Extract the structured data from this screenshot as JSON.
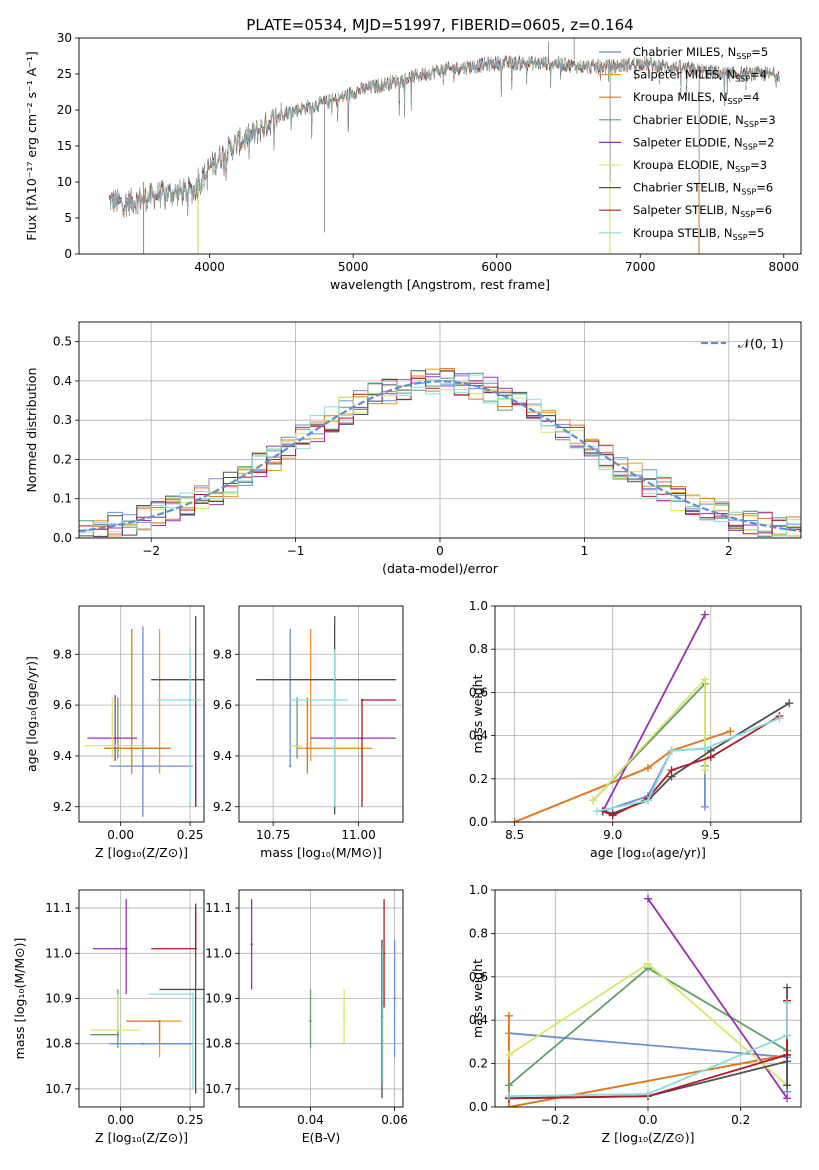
{
  "figure_title": "PLATE=0534, MJD=51997, FIBERID=0605, z=0.164",
  "colors": {
    "Chabrier MILES": "#6a8fd8",
    "Salpeter MILES": "#f0962a",
    "Kroupa MILES": "#e0781e",
    "Chabrier ELODIE": "#5fa06a",
    "Salpeter ELODIE": "#9b30b8",
    "Kroupa ELODIE": "#d4e86a",
    "Chabrier STELIB": "#505050",
    "Salpeter STELIB": "#b01a2a",
    "Kroupa STELIB": "#88dde0",
    "data": "#808080",
    "normal": "#5b8fd6"
  },
  "chart_data": [
    {
      "id": "spectrum",
      "type": "line",
      "xlabel": "wavelength [Angstrom, rest frame]",
      "ylabel": "Flux [fλ10⁻¹⁷ erg cm⁻² s⁻¹ A⁻¹]",
      "xlim": [
        3090,
        8120
      ],
      "ylim": [
        0,
        30
      ],
      "xticks": [
        "4000",
        "5000",
        "6000",
        "7000",
        "8000"
      ],
      "yticks": [
        "0",
        "5",
        "10",
        "15",
        "20",
        "25",
        "30"
      ],
      "legend_position": "right",
      "legend": [
        {
          "label": "Chabrier MILES, N",
          "sub": "SSP",
          "tail": "=5"
        },
        {
          "label": "Salpeter MILES, N",
          "sub": "SSP",
          "tail": "=4"
        },
        {
          "label": "Kroupa MILES, N",
          "sub": "SSP",
          "tail": "=4"
        },
        {
          "label": "Chabrier ELODIE, N",
          "sub": "SSP",
          "tail": "=3"
        },
        {
          "label": "Salpeter ELODIE, N",
          "sub": "SSP",
          "tail": "=2"
        },
        {
          "label": "Kroupa ELODIE, N",
          "sub": "SSP",
          "tail": "=3"
        },
        {
          "label": "Chabrier STELIB, N",
          "sub": "SSP",
          "tail": "=6"
        },
        {
          "label": "Salpeter STELIB, N",
          "sub": "SSP",
          "tail": "=6"
        },
        {
          "label": "Kroupa STELIB, N",
          "sub": "SSP",
          "tail": "=5"
        }
      ],
      "continuum": [
        [
          3300,
          7.5
        ],
        [
          3400,
          7
        ],
        [
          3500,
          7.5
        ],
        [
          3600,
          8
        ],
        [
          3700,
          8.5
        ],
        [
          3800,
          8.5
        ],
        [
          3900,
          9
        ],
        [
          4000,
          12
        ],
        [
          4100,
          14
        ],
        [
          4200,
          15.5
        ],
        [
          4300,
          16.5
        ],
        [
          4400,
          18
        ],
        [
          4500,
          19.5
        ],
        [
          4600,
          20
        ],
        [
          4700,
          20.5
        ],
        [
          4800,
          21
        ],
        [
          4900,
          21.5
        ],
        [
          5000,
          22.5
        ],
        [
          5200,
          23.5
        ],
        [
          5400,
          24.5
        ],
        [
          5600,
          25.5
        ],
        [
          5800,
          26
        ],
        [
          6000,
          26.5
        ],
        [
          6200,
          26.5
        ],
        [
          6400,
          26.5
        ],
        [
          6600,
          26
        ],
        [
          6800,
          26
        ],
        [
          7000,
          26.5
        ],
        [
          7200,
          26
        ],
        [
          7400,
          25.5
        ],
        [
          7600,
          25
        ],
        [
          7800,
          25
        ],
        [
          7970,
          25
        ]
      ]
    },
    {
      "id": "residuals",
      "type": "step",
      "xlabel": "(data-model)/error",
      "ylabel": "Normed distribution",
      "xlim": [
        -2.5,
        2.5
      ],
      "ylim": [
        0,
        0.55
      ],
      "xticks": [
        "−2",
        "−1",
        "0",
        "1",
        "2"
      ],
      "yticks": [
        "0.0",
        "0.1",
        "0.2",
        "0.3",
        "0.4",
        "0.5"
      ],
      "legend": "𝒩(0, 1)",
      "legend_position": "top-right",
      "normal": {
        "mean": 0,
        "std": 1
      }
    },
    {
      "id": "age_vs_Z",
      "type": "errorbar",
      "xlabel": "Z [log₁₀(Z/Z⊙)]",
      "ylabel": "age  [log₁₀(age/yr)]",
      "xlim": [
        -0.15,
        0.3
      ],
      "ylim": [
        9.14,
        9.99
      ],
      "xticks": [
        "0.00",
        "0.25"
      ],
      "yticks": [
        "9.2",
        "9.4",
        "9.6",
        "9.8"
      ],
      "points": [
        {
          "series": "Chabrier MILES",
          "x": 0.08,
          "xerr": [
            0.12,
            0.18
          ],
          "y": 9.36,
          "yerr": [
            0.2,
            0.55
          ]
        },
        {
          "series": "Salpeter MILES",
          "x": 0.14,
          "xerr": [
            0.05,
            0.0
          ],
          "y": 9.43,
          "yerr": [
            0.1,
            0.47
          ]
        },
        {
          "series": "Kroupa MILES",
          "x": 0.04,
          "xerr": [
            0.1,
            0.14
          ],
          "y": 9.43,
          "yerr": [
            0.1,
            0.47
          ]
        },
        {
          "series": "Chabrier ELODIE",
          "x": -0.01,
          "xerr": [
            0.0,
            0.0
          ],
          "y": 9.44,
          "yerr": [
            0.05,
            0.19
          ]
        },
        {
          "series": "Salpeter ELODIE",
          "x": -0.02,
          "xerr": [
            0.1,
            0.08
          ],
          "y": 9.47,
          "yerr": [
            0.09,
            0.17
          ]
        },
        {
          "series": "Kroupa ELODIE",
          "x": -0.03,
          "xerr": [
            0.1,
            0.12
          ],
          "y": 9.44,
          "yerr": [
            0.05,
            0.19
          ]
        },
        {
          "series": "Chabrier STELIB",
          "x": 0.27,
          "xerr": [
            0.16,
            0.04
          ],
          "y": 9.7,
          "yerr": [
            0.5,
            0.25
          ]
        },
        {
          "series": "Salpeter STELIB",
          "x": 0.27,
          "xerr": [
            0.0,
            0.0
          ],
          "y": 9.62,
          "yerr": [
            0.42,
            0.0
          ]
        },
        {
          "series": "Kroupa STELIB",
          "x": 0.25,
          "xerr": [
            0.12,
            0.04
          ],
          "y": 9.62,
          "yerr": [
            0.42,
            0.2
          ]
        }
      ]
    },
    {
      "id": "age_vs_mass",
      "type": "errorbar",
      "xlabel": "mass [log₁₀(M/M⊙)]",
      "ylabel": "",
      "xlim": [
        10.65,
        11.13
      ],
      "ylim": [
        9.14,
        9.99
      ],
      "xticks": [
        "10.75",
        "11.00"
      ],
      "yticks": [
        "9.2",
        "9.4",
        "9.6",
        "9.8"
      ],
      "points": [
        {
          "series": "Chabrier MILES",
          "x": 10.8,
          "xerr": [
            0.0,
            0.0
          ],
          "y": 9.36,
          "yerr": [
            0.0,
            0.54
          ]
        },
        {
          "series": "Salpeter MILES",
          "x": 10.86,
          "xerr": [
            0.04,
            0.18
          ],
          "y": 9.43,
          "yerr": [
            0.05,
            0.47
          ]
        },
        {
          "series": "Kroupa MILES",
          "x": 10.85,
          "xerr": [
            0.0,
            0.0
          ],
          "y": 9.43,
          "yerr": [
            0.1,
            0.2
          ]
        },
        {
          "series": "Chabrier ELODIE",
          "x": 10.82,
          "xerr": [
            0.0,
            0.0
          ],
          "y": 9.44,
          "yerr": [
            0.05,
            0.19
          ]
        },
        {
          "series": "Salpeter ELODIE",
          "x": 11.01,
          "xerr": [
            0.15,
            0.1
          ],
          "y": 9.47,
          "yerr": [
            0.0,
            0.0
          ]
        },
        {
          "series": "Kroupa ELODIE",
          "x": 10.83,
          "xerr": [
            0.03,
            0.0
          ],
          "y": 9.44,
          "yerr": [
            0.0,
            0.0
          ]
        },
        {
          "series": "Chabrier STELIB",
          "x": 10.93,
          "xerr": [
            0.23,
            0.18
          ],
          "y": 9.7,
          "yerr": [
            0.53,
            0.25
          ]
        },
        {
          "series": "Salpeter STELIB",
          "x": 11.01,
          "xerr": [
            0.0,
            0.1
          ],
          "y": 9.62,
          "yerr": [
            0.42,
            0.0
          ]
        },
        {
          "series": "Kroupa STELIB",
          "x": 10.93,
          "xerr": [
            0.13,
            0.04
          ],
          "y": 9.62,
          "yerr": [
            0.42,
            0.2
          ]
        }
      ]
    },
    {
      "id": "weight_vs_age",
      "type": "line",
      "xlabel": "age  [log₁₀(age/yr)]",
      "ylabel": "mass weight",
      "xlim": [
        8.4,
        9.96
      ],
      "ylim": [
        0,
        1
      ],
      "xticks": [
        "8.5",
        "9.0",
        "9.5"
      ],
      "yticks": [
        "0.0",
        "0.2",
        "0.4",
        "0.6",
        "0.8",
        "1.0"
      ],
      "series": [
        {
          "name": "Chabrier MILES",
          "x": [
            8.95,
            9.18,
            9.3,
            9.47,
            9.47
          ],
          "y": [
            0.05,
            0.12,
            0.33,
            0.34,
            0.07
          ]
        },
        {
          "name": "Salpeter MILES",
          "x": [
            8.5,
            9.18,
            9.3,
            9.6
          ],
          "y": [
            0.0,
            0.25,
            0.33,
            0.42
          ]
        },
        {
          "name": "Kroupa MILES",
          "x": [
            8.5,
            9.18,
            9.3,
            9.6
          ],
          "y": [
            0.0,
            0.25,
            0.33,
            0.42
          ]
        },
        {
          "name": "Chabrier ELODIE",
          "x": [
            8.9,
            9.47,
            9.47
          ],
          "y": [
            0.1,
            0.64,
            0.26
          ]
        },
        {
          "name": "Salpeter ELODIE",
          "x": [
            8.95,
            9.47
          ],
          "y": [
            0.05,
            0.96
          ]
        },
        {
          "name": "Kroupa ELODIE",
          "x": [
            8.9,
            9.47,
            9.47
          ],
          "y": [
            0.1,
            0.66,
            0.24
          ]
        },
        {
          "name": "Chabrier STELIB",
          "x": [
            8.95,
            9.0,
            9.18,
            9.3,
            9.5,
            9.9
          ],
          "y": [
            0.05,
            0.04,
            0.1,
            0.21,
            0.33,
            0.55
          ]
        },
        {
          "name": "Salpeter STELIB",
          "x": [
            8.95,
            9.0,
            9.18,
            9.3,
            9.5,
            9.85
          ],
          "y": [
            0.05,
            0.03,
            0.11,
            0.24,
            0.3,
            0.49
          ]
        },
        {
          "name": "Kroupa STELIB",
          "x": [
            8.92,
            9.18,
            9.3,
            9.47,
            9.85
          ],
          "y": [
            0.05,
            0.1,
            0.33,
            0.34,
            0.48
          ]
        }
      ]
    },
    {
      "id": "mass_vs_Z",
      "type": "errorbar",
      "xlabel": "Z [log₁₀(Z/Z⊙)]",
      "ylabel": "mass [log₁₀(M/M⊙)]",
      "xlim": [
        -0.15,
        0.3
      ],
      "ylim": [
        10.66,
        11.14
      ],
      "xticks": [
        "0.00",
        "0.25"
      ],
      "yticks": [
        "10.7",
        "10.8",
        "10.9",
        "11.0",
        "11.1"
      ],
      "points": [
        {
          "series": "Chabrier MILES",
          "x": 0.08,
          "xerr": [
            0.12,
            0.18
          ],
          "y": 10.8,
          "yerr": [
            0.0,
            0.0
          ]
        },
        {
          "series": "Salpeter MILES",
          "x": 0.14,
          "xerr": [
            0.12,
            0.08
          ],
          "y": 10.85,
          "yerr": [
            0.08,
            0.0
          ]
        },
        {
          "series": "Kroupa MILES",
          "x": 0.14,
          "xerr": [
            0.12,
            0.0
          ],
          "y": 10.85,
          "yerr": [
            0.05,
            0.0
          ]
        },
        {
          "series": "Chabrier ELODIE",
          "x": -0.01,
          "xerr": [
            0.1,
            0.0
          ],
          "y": 10.82,
          "yerr": [
            0.03,
            0.1
          ]
        },
        {
          "series": "Salpeter ELODIE",
          "x": 0.02,
          "xerr": [
            0.12,
            0.0
          ],
          "y": 11.01,
          "yerr": [
            0.1,
            0.11
          ]
        },
        {
          "series": "Kroupa ELODIE",
          "x": -0.01,
          "xerr": [
            0.1,
            0.08
          ],
          "y": 10.83,
          "yerr": [
            0.0,
            0.08
          ]
        },
        {
          "series": "Chabrier STELIB",
          "x": 0.27,
          "xerr": [
            0.13,
            0.03
          ],
          "y": 10.92,
          "yerr": [
            0.23,
            0.18
          ]
        },
        {
          "series": "Salpeter STELIB",
          "x": 0.27,
          "xerr": [
            0.16,
            0.0
          ],
          "y": 11.01,
          "yerr": [
            0.0,
            0.1
          ]
        },
        {
          "series": "Kroupa STELIB",
          "x": 0.26,
          "xerr": [
            0.16,
            0.0
          ],
          "y": 10.91,
          "yerr": [
            0.21,
            0.0
          ]
        }
      ]
    },
    {
      "id": "mass_vs_ebv",
      "type": "errorbar",
      "xlabel": "E(B-V)",
      "ylabel": "",
      "xlim": [
        0.023,
        0.062
      ],
      "ylim": [
        10.66,
        11.14
      ],
      "xticks": [
        "0.04",
        "0.06"
      ],
      "yticks": [
        "10.7",
        "10.8",
        "10.9",
        "11.0",
        "11.1"
      ],
      "points": [
        {
          "series": "Chabrier MILES",
          "x": 0.06,
          "xerr": [
            0,
            0
          ],
          "y": 10.9,
          "yerr": [
            0.13,
            0.13
          ]
        },
        {
          "series": "Salpeter ELODIE",
          "x": 0.026,
          "xerr": [
            0,
            0
          ],
          "y": 11.02,
          "yerr": [
            0.1,
            0.1
          ]
        },
        {
          "series": "Chabrier ELODIE",
          "x": 0.04,
          "xerr": [
            0,
            0
          ],
          "y": 10.85,
          "yerr": [
            0.06,
            0.07
          ]
        },
        {
          "series": "Kroupa ELODIE",
          "x": 0.048,
          "xerr": [
            0,
            0
          ],
          "y": 10.86,
          "yerr": [
            0.06,
            0.06
          ]
        },
        {
          "series": "Chabrier STELIB",
          "x": 0.057,
          "xerr": [
            0,
            0
          ],
          "y": 10.86,
          "yerr": [
            0.18,
            0.17
          ]
        },
        {
          "series": "Salpeter STELIB",
          "x": 0.0575,
          "xerr": [
            0,
            0
          ],
          "y": 11.0,
          "yerr": [
            0.12,
            0.12
          ]
        },
        {
          "series": "Kroupa STELIB",
          "x": 0.0572,
          "xerr": [
            0,
            0
          ],
          "y": 10.86,
          "yerr": [
            0.15,
            0.15
          ]
        }
      ]
    },
    {
      "id": "weight_vs_Z",
      "type": "line",
      "xlabel": "Z [log₁₀(Z/Z⊙)]",
      "ylabel": "mass weight",
      "xlim": [
        -0.33,
        0.33
      ],
      "ylim": [
        0,
        1
      ],
      "xticks": [
        "−0.2",
        "0.0",
        "0.2"
      ],
      "yticks": [
        "0.0",
        "0.2",
        "0.4",
        "0.6",
        "0.8",
        "1.0"
      ],
      "series": [
        {
          "name": "Chabrier MILES",
          "x": [
            -0.3,
            0.3,
            0.3
          ],
          "y": [
            0.34,
            0.23,
            0.07
          ]
        },
        {
          "name": "Salpeter MILES",
          "x": [
            -0.3,
            -0.3,
            0.3,
            0.3
          ],
          "y": [
            0.42,
            0.0,
            0.24,
            0.33
          ]
        },
        {
          "name": "Kroupa MILES",
          "x": [
            -0.3,
            -0.3,
            0.3,
            0.3
          ],
          "y": [
            0.42,
            0.0,
            0.24,
            0.33
          ]
        },
        {
          "name": "Chabrier ELODIE",
          "x": [
            -0.3,
            0.0,
            0.3
          ],
          "y": [
            0.1,
            0.64,
            0.26
          ]
        },
        {
          "name": "Salpeter ELODIE",
          "x": [
            0.0,
            0.3
          ],
          "y": [
            0.96,
            0.04
          ]
        },
        {
          "name": "Kroupa ELODIE",
          "x": [
            -0.3,
            0.0,
            0.3
          ],
          "y": [
            0.24,
            0.66,
            0.1
          ]
        },
        {
          "name": "Chabrier STELIB",
          "x": [
            -0.3,
            0.0,
            0.3,
            0.3,
            0.3
          ],
          "y": [
            0.04,
            0.05,
            0.21,
            0.55,
            0.1
          ]
        },
        {
          "name": "Salpeter STELIB",
          "x": [
            -0.3,
            0.0,
            0.3,
            0.3
          ],
          "y": [
            0.04,
            0.05,
            0.24,
            0.49
          ]
        },
        {
          "name": "Kroupa STELIB",
          "x": [
            -0.3,
            0.0,
            0.3,
            0.3
          ],
          "y": [
            0.05,
            0.06,
            0.33,
            0.48
          ]
        }
      ]
    }
  ]
}
